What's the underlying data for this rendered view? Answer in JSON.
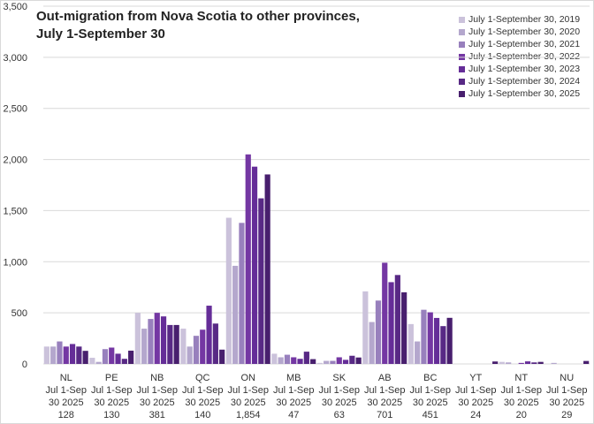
{
  "chart_data": {
    "type": "bar",
    "title": "Out-migration from Nova Scotia to other provinces, July 1-September 30",
    "categories": [
      "NL",
      "PE",
      "NB",
      "QC",
      "ON",
      "MB",
      "SK",
      "AB",
      "BC",
      "YT",
      "NT",
      "NU"
    ],
    "category_sublabel": [
      "Jul 1-Sep",
      "30 2025"
    ],
    "category_values": [
      "128",
      "130",
      "381",
      "140",
      "1,854",
      "47",
      "63",
      "701",
      "451",
      "24",
      "20",
      "29"
    ],
    "ylim": [
      0,
      3500
    ],
    "yticks": [
      0,
      500,
      1000,
      1500,
      2000,
      2500,
      3000,
      3500
    ],
    "ytick_labels": [
      "0",
      "500",
      "1,000",
      "1,500",
      "2,000",
      "2,500",
      "3,000",
      "3,500"
    ],
    "grid": true,
    "legend_position": "top-right",
    "series": [
      {
        "name": "July 1-September 30, 2019",
        "color": "#cbc2db",
        "values": [
          170,
          60,
          500,
          345,
          1430,
          100,
          10,
          710,
          390,
          0,
          20,
          0
        ]
      },
      {
        "name": "July 1-September 30, 2020",
        "color": "#b4a7cd",
        "values": [
          170,
          20,
          345,
          170,
          960,
          65,
          30,
          410,
          220,
          0,
          15,
          10
        ]
      },
      {
        "name": "July 1-September 30, 2021",
        "color": "#9880bd",
        "values": [
          220,
          145,
          440,
          275,
          1380,
          90,
          30,
          620,
          530,
          0,
          0,
          0
        ]
      },
      {
        "name": "July 1-September 30, 2022",
        "color": "#7437a3",
        "values": [
          170,
          160,
          500,
          335,
          2050,
          65,
          65,
          990,
          505,
          0,
          10,
          0
        ]
      },
      {
        "name": "July 1-September 30, 2023",
        "color": "#652d98",
        "values": [
          195,
          100,
          465,
          570,
          1930,
          50,
          40,
          800,
          450,
          0,
          25,
          0
        ]
      },
      {
        "name": "July 1-September 30, 2024",
        "color": "#582985",
        "values": [
          170,
          50,
          381,
          395,
          1620,
          120,
          80,
          870,
          370,
          0,
          15,
          0
        ]
      },
      {
        "name": "July 1-September 30, 2025",
        "color": "#481f6e",
        "values": [
          128,
          130,
          381,
          140,
          1854,
          47,
          63,
          701,
          451,
          24,
          20,
          29
        ]
      }
    ]
  }
}
